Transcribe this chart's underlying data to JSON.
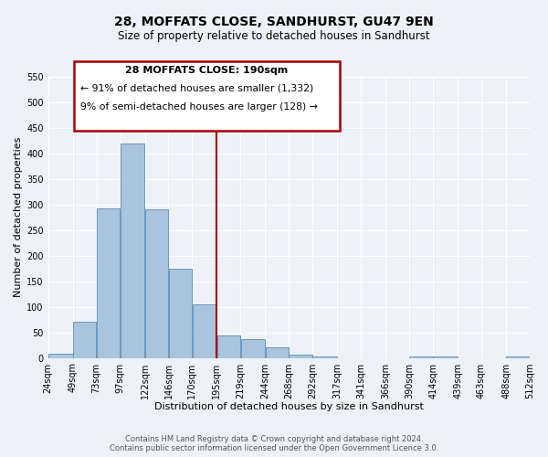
{
  "title": "28, MOFFATS CLOSE, SANDHURST, GU47 9EN",
  "subtitle": "Size of property relative to detached houses in Sandhurst",
  "xlabel": "Distribution of detached houses by size in Sandhurst",
  "ylabel": "Number of detached properties",
  "bar_left_edges": [
    24,
    49,
    73,
    97,
    122,
    146,
    170,
    195,
    219,
    244,
    268,
    292,
    317,
    341,
    366,
    390,
    414,
    439,
    463,
    488
  ],
  "bar_widths": [
    25,
    24,
    24,
    25,
    24,
    24,
    25,
    24,
    25,
    24,
    24,
    25,
    24,
    25,
    24,
    24,
    25,
    24,
    24,
    24
  ],
  "bar_heights": [
    8,
    70,
    293,
    420,
    290,
    175,
    105,
    44,
    37,
    20,
    6,
    2,
    0,
    0,
    0,
    2,
    2,
    0,
    0,
    2
  ],
  "bar_color": "#aac4dd",
  "bar_edge_color": "#5b8db8",
  "tick_labels": [
    "24sqm",
    "49sqm",
    "73sqm",
    "97sqm",
    "122sqm",
    "146sqm",
    "170sqm",
    "195sqm",
    "219sqm",
    "244sqm",
    "268sqm",
    "292sqm",
    "317sqm",
    "341sqm",
    "366sqm",
    "390sqm",
    "414sqm",
    "439sqm",
    "463sqm",
    "488sqm",
    "512sqm"
  ],
  "ylim": [
    0,
    550
  ],
  "yticks": [
    0,
    50,
    100,
    150,
    200,
    250,
    300,
    350,
    400,
    450,
    500,
    550
  ],
  "xlim_left": 24,
  "xlim_right": 512,
  "vline_x": 195,
  "vline_color": "#aa0000",
  "annotation_title": "28 MOFFATS CLOSE: 190sqm",
  "annotation_line1": "← 91% of detached houses are smaller (1,332)",
  "annotation_line2": "9% of semi-detached houses are larger (128) →",
  "annotation_box_color": "#aa0000",
  "footer_line1": "Contains HM Land Registry data © Crown copyright and database right 2024.",
  "footer_line2": "Contains public sector information licensed under the Open Government Licence 3.0.",
  "bg_color": "#eef2f8",
  "grid_color": "#ffffff",
  "title_fontsize": 10,
  "subtitle_fontsize": 8.5,
  "axis_label_fontsize": 8,
  "tick_fontsize": 7,
  "footer_fontsize": 6
}
